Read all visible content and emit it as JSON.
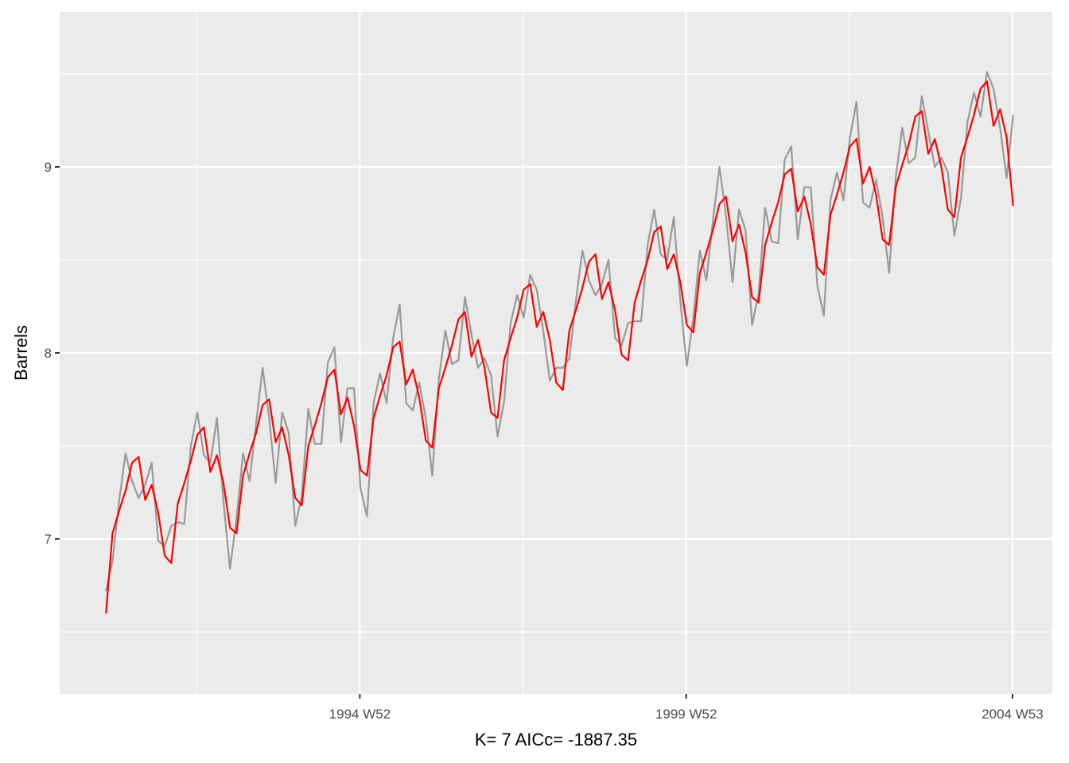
{
  "chart_data": {
    "type": "line",
    "xlabel": "K= 7    AICc= -1887.35",
    "ylabel": "Barrels",
    "x": [
      1991.1,
      1991.2,
      1991.3,
      1991.4,
      1991.5,
      1991.6,
      1991.7,
      1991.8,
      1991.9,
      1992.0,
      1992.1,
      1992.2,
      1992.3,
      1992.4,
      1992.5,
      1992.6,
      1992.7,
      1992.8,
      1992.9,
      1993.0,
      1993.1,
      1993.2,
      1993.3,
      1993.4,
      1993.5,
      1993.6,
      1993.7,
      1993.8,
      1993.9,
      1994.0,
      1994.1,
      1994.2,
      1994.3,
      1994.4,
      1994.5,
      1994.6,
      1994.7,
      1994.8,
      1994.9,
      1995.0,
      1995.1,
      1995.2,
      1995.3,
      1995.4,
      1995.5,
      1995.6,
      1995.7,
      1995.8,
      1995.9,
      1996.0,
      1996.1,
      1996.2,
      1996.3,
      1996.4,
      1996.5,
      1996.6,
      1996.7,
      1996.8,
      1996.9,
      1997.0,
      1997.1,
      1997.2,
      1997.3,
      1997.4,
      1997.5,
      1997.6,
      1997.7,
      1997.8,
      1997.9,
      1998.0,
      1998.1,
      1998.2,
      1998.3,
      1998.4,
      1998.5,
      1998.6,
      1998.7,
      1998.8,
      1998.9,
      1999.0,
      1999.1,
      1999.2,
      1999.3,
      1999.4,
      1999.5,
      1999.6,
      1999.7,
      1999.8,
      1999.9,
      2000.0,
      2000.1,
      2000.2,
      2000.3,
      2000.4,
      2000.5,
      2000.6,
      2000.7,
      2000.8,
      2000.9,
      2001.0,
      2001.1,
      2001.2,
      2001.3,
      2001.4,
      2001.5,
      2001.6,
      2001.7,
      2001.8,
      2001.9,
      2002.0,
      2002.1,
      2002.2,
      2002.3,
      2002.4,
      2002.5,
      2002.6,
      2002.7,
      2002.8,
      2002.9,
      2003.0,
      2003.1,
      2003.2,
      2003.3,
      2003.4,
      2003.5,
      2003.6,
      2003.7,
      2003.8,
      2003.9,
      2004.0,
      2004.1,
      2004.2,
      2004.3,
      2004.4,
      2004.5,
      2004.6,
      2004.7,
      2004.8,
      2004.9,
      2005.0
    ],
    "series": [
      {
        "color": "#999999",
        "width": 2.2,
        "values": [
          6.72,
          6.88,
          7.2,
          7.46,
          7.31,
          7.22,
          7.29,
          7.41,
          6.99,
          6.96,
          7.07,
          7.09,
          7.08,
          7.5,
          7.68,
          7.45,
          7.41,
          7.65,
          7.2,
          6.84,
          7.11,
          7.46,
          7.31,
          7.62,
          7.92,
          7.65,
          7.3,
          7.68,
          7.57,
          7.07,
          7.23,
          7.7,
          7.51,
          7.51,
          7.95,
          8.03,
          7.52,
          7.81,
          7.81,
          7.27,
          7.12,
          7.73,
          7.89,
          7.73,
          8.08,
          8.26,
          7.73,
          7.69,
          7.84,
          7.65,
          7.34,
          7.86,
          8.12,
          7.94,
          7.96,
          8.3,
          8.1,
          7.92,
          7.97,
          7.88,
          7.55,
          7.74,
          8.16,
          8.31,
          8.19,
          8.42,
          8.34,
          8.12,
          7.85,
          7.92,
          7.92,
          7.97,
          8.28,
          8.55,
          8.39,
          8.31,
          8.37,
          8.5,
          8.08,
          8.04,
          8.16,
          8.17,
          8.17,
          8.58,
          8.77,
          8.53,
          8.5,
          8.73,
          8.28,
          7.93,
          8.19,
          8.55,
          8.39,
          8.71,
          9.0,
          8.74,
          8.38,
          8.77,
          8.66,
          8.15,
          8.32,
          8.78,
          8.6,
          8.59,
          9.04,
          9.11,
          8.61,
          8.89,
          8.89,
          8.36,
          8.2,
          8.82,
          8.97,
          8.82,
          9.16,
          9.35,
          8.81,
          8.78,
          8.93,
          8.73,
          8.43,
          8.94,
          9.21,
          9.02,
          9.05,
          9.38,
          9.19,
          9.0,
          9.05,
          8.97,
          8.63,
          8.83,
          9.24,
          9.4,
          9.27,
          9.51,
          9.42,
          9.21,
          8.94,
          9.28
        ]
      },
      {
        "color": "#ff0000",
        "width": 2.2,
        "values": [
          6.6,
          7.03,
          7.15,
          7.26,
          7.41,
          7.44,
          7.21,
          7.29,
          7.14,
          6.91,
          6.87,
          7.19,
          7.3,
          7.42,
          7.56,
          7.6,
          7.36,
          7.45,
          7.3,
          7.06,
          7.03,
          7.34,
          7.46,
          7.57,
          7.72,
          7.75,
          7.52,
          7.6,
          7.45,
          7.22,
          7.18,
          7.5,
          7.61,
          7.73,
          7.87,
          7.91,
          7.67,
          7.76,
          7.61,
          7.37,
          7.34,
          7.65,
          7.77,
          7.88,
          8.03,
          8.06,
          7.83,
          7.91,
          7.76,
          7.53,
          7.49,
          7.81,
          7.92,
          8.04,
          8.18,
          8.22,
          7.98,
          8.07,
          7.92,
          7.68,
          7.65,
          7.96,
          8.08,
          8.19,
          8.34,
          8.37,
          8.14,
          8.22,
          8.07,
          7.84,
          7.8,
          8.12,
          8.23,
          8.35,
          8.49,
          8.53,
          8.29,
          8.38,
          8.23,
          7.99,
          7.96,
          8.27,
          8.39,
          8.5,
          8.65,
          8.68,
          8.45,
          8.53,
          8.38,
          8.15,
          8.11,
          8.43,
          8.54,
          8.66,
          8.8,
          8.84,
          8.6,
          8.69,
          8.54,
          8.3,
          8.27,
          8.58,
          8.7,
          8.81,
          8.96,
          8.99,
          8.76,
          8.84,
          8.69,
          8.46,
          8.42,
          8.74,
          8.85,
          8.97,
          9.11,
          9.15,
          8.91,
          9.0,
          8.85,
          8.61,
          8.58,
          8.89,
          9.01,
          9.12,
          9.27,
          9.3,
          9.07,
          9.15,
          9.0,
          8.77,
          8.73,
          9.05,
          9.16,
          9.28,
          9.42,
          9.46,
          9.22,
          9.31,
          9.16,
          8.79
        ]
      }
    ],
    "xlim": [
      1990.39,
      2005.6
    ],
    "ylim": [
      6.167,
      9.833
    ],
    "xticks": [
      {
        "value": 1994.99,
        "label": "1994 W52"
      },
      {
        "value": 1999.99,
        "label": "1999 W52"
      },
      {
        "value": 2004.99,
        "label": "2004 W53"
      }
    ],
    "yticks": [
      7,
      8,
      9
    ],
    "x_minor_grid": [
      1992.49,
      1997.49,
      2002.49
    ],
    "y_minor_grid": [
      6.5,
      7.5,
      8.5,
      9.5
    ],
    "grid": true,
    "panel_color": "#ebebeb"
  }
}
